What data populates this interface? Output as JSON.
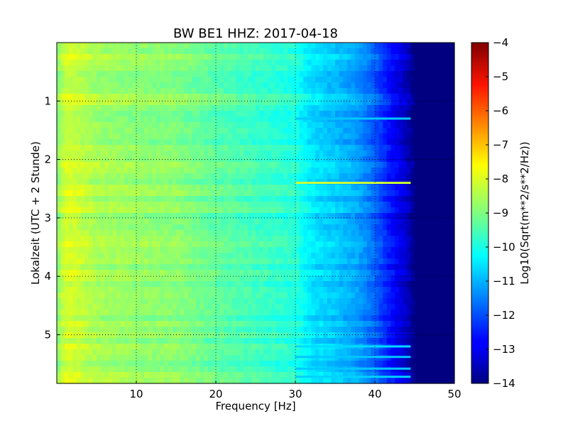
{
  "chart_data": {
    "type": "heatmap",
    "title": "BW BE1 HHZ: 2017-04-18",
    "xlabel": "Frequency [Hz]",
    "ylabel": "Lokalzeit (UTC + 2 Stunde)",
    "xlim": [
      0,
      50
    ],
    "ylim": [
      0,
      5.833
    ],
    "y_inverted": true,
    "xticks": [
      10,
      20,
      30,
      40,
      50
    ],
    "xtick_labels": [
      "10",
      "20",
      "30",
      "40",
      "50"
    ],
    "yticks": [
      1,
      2,
      3,
      4,
      5
    ],
    "ytick_labels": [
      "1",
      "2",
      "3",
      "4",
      "5"
    ],
    "grid": true,
    "colormap": "jet",
    "colorbar": {
      "label": "Log10(Sqrt(m**2/s**2/Hz))",
      "min": -14,
      "max": -4,
      "ticks": [
        -4,
        -5,
        -6,
        -7,
        -8,
        -9,
        -10,
        -11,
        -12,
        -13,
        -14
      ],
      "tick_labels": [
        "−4",
        "−5",
        "−6",
        "−7",
        "−8",
        "−9",
        "−10",
        "−11",
        "−12",
        "−13",
        "−14"
      ]
    },
    "spectral_profile": {
      "frequency_hz": [
        0,
        1,
        2,
        5,
        10,
        15,
        20,
        25,
        30,
        32,
        35,
        38,
        40,
        42,
        44,
        45,
        46,
        50
      ],
      "log10_amplitude": [
        -9.0,
        -8.2,
        -8.2,
        -8.6,
        -8.8,
        -8.9,
        -9.3,
        -9.6,
        -9.9,
        -10.5,
        -10.8,
        -11.2,
        -11.8,
        -12.6,
        -13.3,
        -14.0,
        -14.0,
        -14.0
      ]
    },
    "horizontal_bands": [
      {
        "time_h": 1.3,
        "log10_amplitude": -10.8
      },
      {
        "time_h": 2.4,
        "log10_amplitude": -8.3
      },
      {
        "time_h": 5.2,
        "log10_amplitude": -10.6
      },
      {
        "time_h": 5.38,
        "log10_amplitude": -10.8
      },
      {
        "time_h": 5.58,
        "log10_amplitude": -10.8
      },
      {
        "time_h": 5.72,
        "log10_amplitude": -10.7
      }
    ]
  }
}
